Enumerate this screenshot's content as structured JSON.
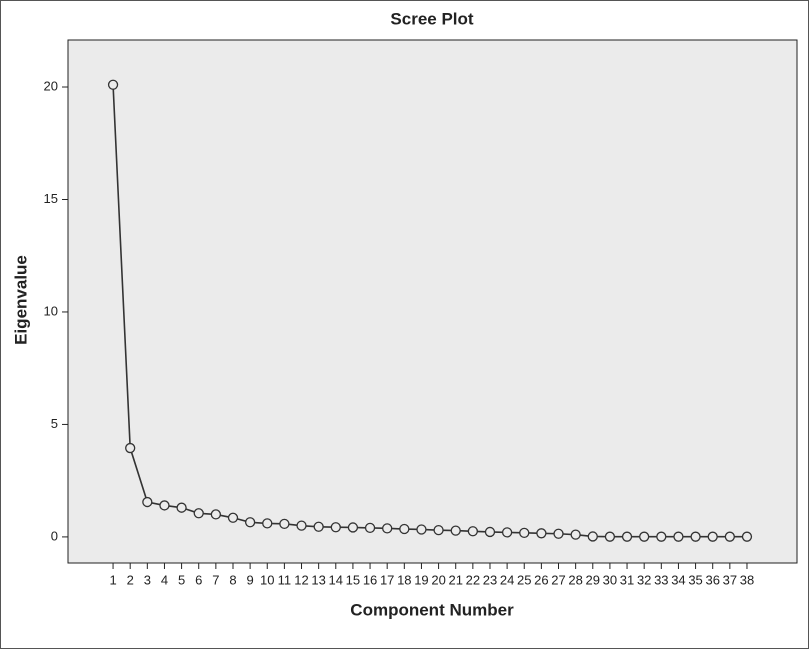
{
  "chart_data": {
    "type": "line",
    "title": "Scree Plot",
    "x_label": "Component Number",
    "y_label": "Eigenvalue",
    "x": [
      1,
      2,
      3,
      4,
      5,
      6,
      7,
      8,
      9,
      10,
      11,
      12,
      13,
      14,
      15,
      16,
      17,
      18,
      19,
      20,
      21,
      22,
      23,
      24,
      25,
      26,
      27,
      28,
      29,
      30,
      31,
      32,
      33,
      34,
      35,
      36,
      37,
      38
    ],
    "values": [
      20.1,
      3.95,
      1.55,
      1.4,
      1.3,
      1.05,
      1.0,
      0.85,
      0.65,
      0.6,
      0.58,
      0.5,
      0.45,
      0.43,
      0.42,
      0.4,
      0.38,
      0.35,
      0.33,
      0.3,
      0.28,
      0.25,
      0.22,
      0.2,
      0.18,
      0.16,
      0.14,
      0.1,
      0.02,
      0.01,
      0.01,
      0.01,
      0.01,
      0.01,
      0.01,
      0.01,
      0.01,
      0.01
    ],
    "color": "#333333",
    "xlim": [
      -1.63,
      40.92
    ],
    "ylim": [
      -1.16,
      22.09
    ],
    "xticks": [
      1,
      2,
      3,
      4,
      5,
      6,
      7,
      8,
      9,
      10,
      11,
      12,
      13,
      14,
      15,
      16,
      17,
      18,
      19,
      20,
      21,
      22,
      23,
      24,
      25,
      26,
      27,
      28,
      29,
      30,
      31,
      32,
      33,
      34,
      35,
      36,
      37,
      38
    ],
    "yticks": [
      0,
      5,
      10,
      15,
      20
    ]
  }
}
